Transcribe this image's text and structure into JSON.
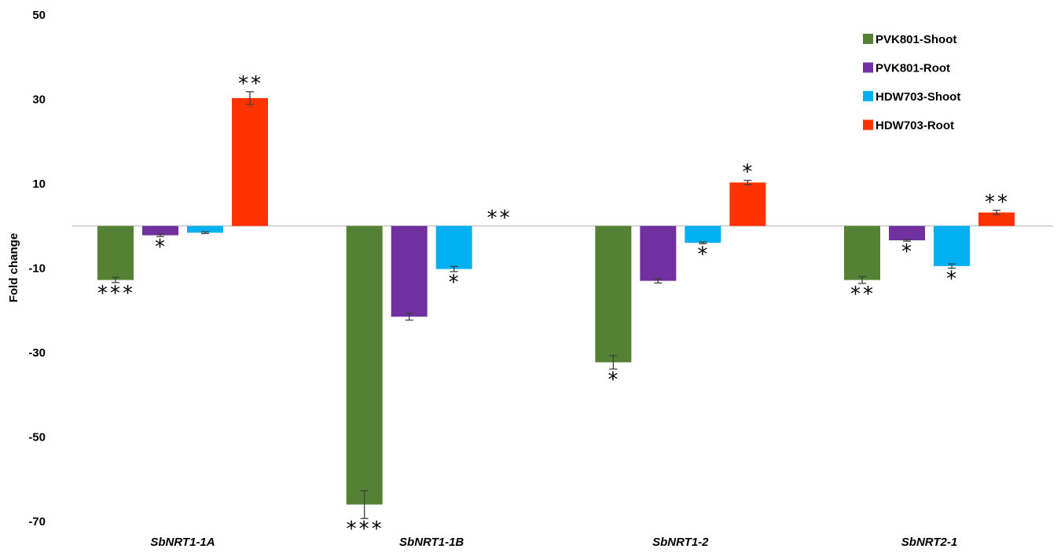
{
  "chart_data": {
    "type": "bar",
    "ylabel": "Fold change",
    "ylim": [
      -70,
      50
    ],
    "yticks": [
      50,
      30,
      10,
      -10,
      -30,
      -50,
      -70
    ],
    "grid": false,
    "legend_position": "top-right",
    "categories": [
      "SbNRT1-1A",
      "SbNRT1-1B",
      "SbNRT1-2",
      "SbNRT2-1"
    ],
    "series": [
      {
        "name": "PVK801-Shoot",
        "color": "#548235",
        "values": [
          -12.8,
          -66.0,
          -32.3,
          -12.8
        ],
        "errors": [
          0.6,
          3.3,
          1.6,
          0.8
        ],
        "significance": [
          "***",
          "***",
          "*",
          "**"
        ]
      },
      {
        "name": "PVK801-Root",
        "color": "#7030a0",
        "values": [
          -2.2,
          -21.5,
          -13.0,
          -3.4
        ],
        "errors": [
          0.3,
          0.8,
          0.5,
          0.2
        ],
        "significance": [
          "*",
          "",
          "",
          "*"
        ]
      },
      {
        "name": "HDW703-Shoot",
        "color": "#00b0f0",
        "values": [
          -1.6,
          -10.2,
          -4.0,
          -9.5
        ],
        "errors": [
          0.2,
          0.6,
          0.2,
          0.5
        ],
        "significance": [
          "",
          "*",
          "*",
          "*"
        ]
      },
      {
        "name": "HDW703-Root",
        "color": "#ff3300",
        "values": [
          30.3,
          0,
          10.3,
          3.2
        ],
        "errors": [
          1.5,
          0,
          0.5,
          0.5
        ],
        "significance": [
          "**",
          "**",
          "*",
          "**"
        ]
      }
    ]
  }
}
